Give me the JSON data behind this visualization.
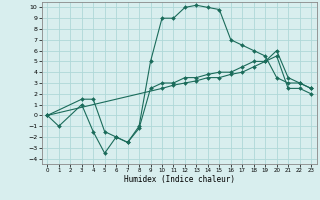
{
  "xlabel": "Humidex (Indice chaleur)",
  "ylabel": "",
  "xlim": [
    -0.5,
    23.5
  ],
  "ylim": [
    -4.5,
    10.5
  ],
  "xticks": [
    0,
    1,
    2,
    3,
    4,
    5,
    6,
    7,
    8,
    9,
    10,
    11,
    12,
    13,
    14,
    15,
    16,
    17,
    18,
    19,
    20,
    21,
    22,
    23
  ],
  "yticks": [
    -4,
    -3,
    -2,
    -1,
    0,
    1,
    2,
    3,
    4,
    5,
    6,
    7,
    8,
    9,
    10
  ],
  "line_color": "#1a6b5a",
  "bg_color": "#d8eeee",
  "grid_color": "#afd8d8",
  "lines": [
    {
      "x": [
        0,
        1,
        3,
        4,
        5,
        6,
        7,
        8,
        9,
        10,
        11,
        12,
        13,
        14,
        15,
        16,
        17,
        18,
        19,
        20,
        21,
        22,
        23
      ],
      "y": [
        0,
        -1,
        1,
        -1.5,
        -3.5,
        -2,
        -2.5,
        -1,
        5,
        9,
        9,
        10,
        10.2,
        10,
        9.8,
        7,
        6.5,
        6,
        5.5,
        3.5,
        3,
        3,
        2.5
      ]
    },
    {
      "x": [
        0,
        3,
        4,
        5,
        6,
        7,
        8,
        9,
        10,
        11,
        12,
        13,
        14,
        15,
        16,
        17,
        18,
        19,
        20,
        21,
        22,
        23
      ],
      "y": [
        0,
        1.5,
        1.5,
        -1.5,
        -2,
        -2.5,
        -1.2,
        2.5,
        3,
        3,
        3.5,
        3.5,
        3.8,
        4,
        4,
        4.5,
        5,
        5,
        6,
        3.5,
        3,
        2.5
      ]
    },
    {
      "x": [
        0,
        10,
        11,
        12,
        13,
        14,
        15,
        16,
        17,
        18,
        19,
        20,
        21,
        22,
        23
      ],
      "y": [
        0,
        2.5,
        2.8,
        3,
        3.2,
        3.5,
        3.5,
        3.8,
        4,
        4.5,
        5,
        5.5,
        2.5,
        2.5,
        2
      ]
    }
  ]
}
